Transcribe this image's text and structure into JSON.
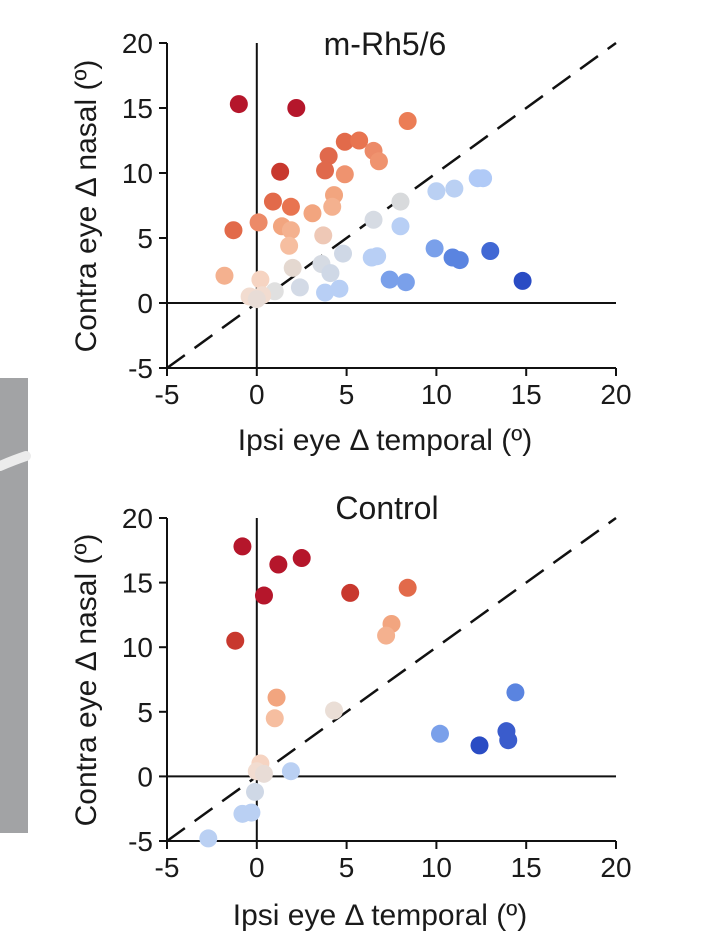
{
  "colors": {
    "axis": "#111111",
    "side_bar": "#a2a3a5",
    "background": "#ffffff"
  },
  "chart_data": [
    {
      "type": "scatter",
      "title": "m-Rh5/6",
      "xlabel": "Ipsi eye Δ temporal (º)",
      "ylabel": "Contra eye Δ nasal (º)",
      "xlim": [
        -5,
        20
      ],
      "ylim": [
        -5,
        20
      ],
      "x_ticks": [
        "-5",
        "0",
        "5",
        "10",
        "15",
        "20"
      ],
      "y_ticks": [
        "-5",
        "0",
        "5",
        "10",
        "15",
        "20"
      ],
      "x_tick_values": [
        -5,
        0,
        5,
        10,
        15,
        20
      ],
      "y_tick_values": [
        -5,
        0,
        5,
        10,
        15,
        20
      ],
      "zero_lines": true,
      "identity_line": "dashed",
      "grid": false,
      "legend": "none",
      "points": [
        {
          "x": -1.0,
          "y": 15.3,
          "color": "#b5162b"
        },
        {
          "x": 2.2,
          "y": 15.0,
          "color": "#b5162b"
        },
        {
          "x": 1.3,
          "y": 10.1,
          "color": "#c8382e"
        },
        {
          "x": 4.0,
          "y": 11.3,
          "color": "#e0694c"
        },
        {
          "x": 3.8,
          "y": 10.2,
          "color": "#e0694c"
        },
        {
          "x": 4.9,
          "y": 12.4,
          "color": "#e26a4a"
        },
        {
          "x": 5.7,
          "y": 12.5,
          "color": "#e87450"
        },
        {
          "x": 6.5,
          "y": 11.7,
          "color": "#ec8a68"
        },
        {
          "x": 8.4,
          "y": 14.0,
          "color": "#eb7d56"
        },
        {
          "x": 6.8,
          "y": 10.9,
          "color": "#ef936f"
        },
        {
          "x": 4.9,
          "y": 9.9,
          "color": "#ef936f"
        },
        {
          "x": 4.3,
          "y": 8.3,
          "color": "#f2a57f"
        },
        {
          "x": 0.9,
          "y": 7.8,
          "color": "#e26a4a"
        },
        {
          "x": 1.9,
          "y": 7.4,
          "color": "#e87450"
        },
        {
          "x": 4.2,
          "y": 7.4,
          "color": "#f4b18f"
        },
        {
          "x": 3.1,
          "y": 6.9,
          "color": "#f2a57f"
        },
        {
          "x": 0.1,
          "y": 6.2,
          "color": "#ec8a68"
        },
        {
          "x": 1.4,
          "y": 5.9,
          "color": "#f2a57f"
        },
        {
          "x": -1.3,
          "y": 5.6,
          "color": "#e26a4a"
        },
        {
          "x": 1.9,
          "y": 5.6,
          "color": "#f4b18f"
        },
        {
          "x": 3.7,
          "y": 5.2,
          "color": "#eec8b6"
        },
        {
          "x": 1.8,
          "y": 4.4,
          "color": "#f6bea0"
        },
        {
          "x": 8.0,
          "y": 7.8,
          "color": "#d8dadc"
        },
        {
          "x": 6.5,
          "y": 6.4,
          "color": "#d6dbe3"
        },
        {
          "x": 8.0,
          "y": 5.9,
          "color": "#b8cff5"
        },
        {
          "x": 10.0,
          "y": 8.6,
          "color": "#bad0f3"
        },
        {
          "x": 11.0,
          "y": 8.8,
          "color": "#bad0f3"
        },
        {
          "x": 12.3,
          "y": 9.6,
          "color": "#b0caf7"
        },
        {
          "x": 12.6,
          "y": 9.6,
          "color": "#b0caf7"
        },
        {
          "x": 4.8,
          "y": 3.8,
          "color": "#cfd8e6"
        },
        {
          "x": 6.7,
          "y": 3.6,
          "color": "#b8cff5"
        },
        {
          "x": 6.4,
          "y": 3.5,
          "color": "#b8cff5"
        },
        {
          "x": 9.9,
          "y": 4.2,
          "color": "#7aa0ea"
        },
        {
          "x": 10.9,
          "y": 3.5,
          "color": "#5a84e0"
        },
        {
          "x": 11.3,
          "y": 3.3,
          "color": "#5a84e0"
        },
        {
          "x": 13.0,
          "y": 4.0,
          "color": "#4168d4"
        },
        {
          "x": 14.8,
          "y": 1.7,
          "color": "#2a4cc4"
        },
        {
          "x": 7.4,
          "y": 1.8,
          "color": "#7aa0ea"
        },
        {
          "x": 8.3,
          "y": 1.6,
          "color": "#7aa0ea"
        },
        {
          "x": 3.6,
          "y": 3.0,
          "color": "#d6dbe3"
        },
        {
          "x": 4.1,
          "y": 2.3,
          "color": "#cfd8e6"
        },
        {
          "x": 2.0,
          "y": 2.7,
          "color": "#e4d8d0"
        },
        {
          "x": -1.8,
          "y": 2.1,
          "color": "#f4b18f"
        },
        {
          "x": 0.2,
          "y": 1.8,
          "color": "#f6d4c2"
        },
        {
          "x": 2.4,
          "y": 1.2,
          "color": "#d3dae6"
        },
        {
          "x": 1.0,
          "y": 0.9,
          "color": "#e0e0e0"
        },
        {
          "x": 4.6,
          "y": 1.1,
          "color": "#b8cff5"
        },
        {
          "x": 3.8,
          "y": 0.8,
          "color": "#b8cff5"
        },
        {
          "x": 0.3,
          "y": 0.6,
          "color": "#f2dcd0"
        },
        {
          "x": -0.4,
          "y": 0.5,
          "color": "#f2dcd0"
        },
        {
          "x": 0.0,
          "y": 0.3,
          "color": "#e8dcd6"
        }
      ]
    },
    {
      "type": "scatter",
      "title": "Control",
      "xlabel": "Ipsi eye Δ temporal (º)",
      "ylabel": "Contra eye Δ nasal (º)",
      "xlim": [
        -5,
        20
      ],
      "ylim": [
        -5,
        20
      ],
      "x_ticks": [
        "-5",
        "0",
        "5",
        "10",
        "15",
        "20"
      ],
      "y_ticks": [
        "-5",
        "0",
        "5",
        "10",
        "15",
        "20"
      ],
      "x_tick_values": [
        -5,
        0,
        5,
        10,
        15,
        20
      ],
      "y_tick_values": [
        -5,
        0,
        5,
        10,
        15,
        20
      ],
      "zero_lines": true,
      "identity_line": "dashed",
      "grid": false,
      "legend": "none",
      "points": [
        {
          "x": -0.8,
          "y": 17.8,
          "color": "#b5162b"
        },
        {
          "x": 1.2,
          "y": 16.4,
          "color": "#b5162b"
        },
        {
          "x": 2.5,
          "y": 16.9,
          "color": "#b5162b"
        },
        {
          "x": 0.4,
          "y": 14.0,
          "color": "#b5162b"
        },
        {
          "x": 5.2,
          "y": 14.2,
          "color": "#c8382e"
        },
        {
          "x": 8.4,
          "y": 14.6,
          "color": "#e26a4a"
        },
        {
          "x": -1.2,
          "y": 10.5,
          "color": "#c8382e"
        },
        {
          "x": 7.5,
          "y": 11.8,
          "color": "#f2a57f"
        },
        {
          "x": 7.2,
          "y": 10.9,
          "color": "#f4b18f"
        },
        {
          "x": 1.1,
          "y": 6.1,
          "color": "#f2a57f"
        },
        {
          "x": 1.0,
          "y": 4.5,
          "color": "#f6bea0"
        },
        {
          "x": 4.3,
          "y": 5.1,
          "color": "#eaded6"
        },
        {
          "x": 14.4,
          "y": 6.5,
          "color": "#5a84e0"
        },
        {
          "x": 10.2,
          "y": 3.3,
          "color": "#7aa0ea"
        },
        {
          "x": 12.4,
          "y": 2.4,
          "color": "#2a4cc4"
        },
        {
          "x": 13.9,
          "y": 3.5,
          "color": "#3a5ccc"
        },
        {
          "x": 14.0,
          "y": 2.8,
          "color": "#3a5ccc"
        },
        {
          "x": 1.9,
          "y": 0.4,
          "color": "#bad0f3"
        },
        {
          "x": 0.2,
          "y": 1.0,
          "color": "#f6d4c2"
        },
        {
          "x": 0.0,
          "y": 0.4,
          "color": "#f2dcd0"
        },
        {
          "x": 0.4,
          "y": 0.2,
          "color": "#e8dcd6"
        },
        {
          "x": -0.1,
          "y": -1.2,
          "color": "#cfd8e6"
        },
        {
          "x": -0.8,
          "y": -2.9,
          "color": "#bad0f3"
        },
        {
          "x": -0.3,
          "y": -2.8,
          "color": "#bad0f3"
        },
        {
          "x": -2.7,
          "y": -4.8,
          "color": "#bad0f3"
        }
      ]
    }
  ]
}
